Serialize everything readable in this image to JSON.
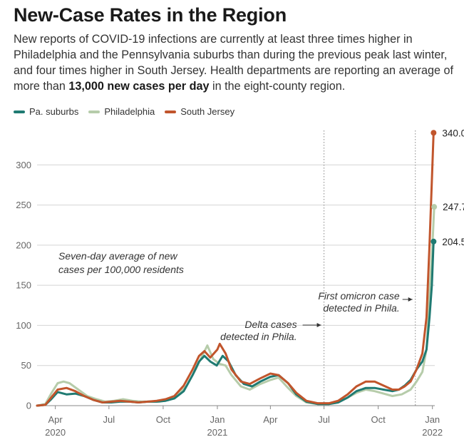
{
  "header": {
    "title": "New-Case Rates in the Region",
    "subtitle_pre": "New reports of COVID-19 infections are currently at least three times higher in Philadelphia and the Pennsylvania suburbs than during the previous peak last winter, and four times higher in South Jersey. Health departments are reporting an average of more than ",
    "subtitle_bold": "13,000 new cases per day",
    "subtitle_post": " in the eight-county region."
  },
  "colors": {
    "pa_suburbs": "#1f7a72",
    "philadelphia": "#b6ccaa",
    "south_jersey": "#c1552c"
  },
  "chart_data": {
    "type": "line",
    "title": "New-Case Rates in the Region",
    "ylabel": "Seven-day average of new cases per 100,000 residents",
    "ylim": [
      0,
      350
    ],
    "yticks": [
      0,
      50,
      100,
      150,
      200,
      250,
      300
    ],
    "x_range": [
      "2020-03-01",
      "2022-01-05"
    ],
    "xticks": [
      {
        "date": "2020-04-01",
        "label": "Apr",
        "year": "2020"
      },
      {
        "date": "2020-07-01",
        "label": "Jul",
        "year": ""
      },
      {
        "date": "2020-10-01",
        "label": "Oct",
        "year": ""
      },
      {
        "date": "2021-01-01",
        "label": "Jan",
        "year": "2021"
      },
      {
        "date": "2021-04-01",
        "label": "Apr",
        "year": ""
      },
      {
        "date": "2021-07-01",
        "label": "Jul",
        "year": ""
      },
      {
        "date": "2021-10-01",
        "label": "Oct",
        "year": ""
      },
      {
        "date": "2022-01-01",
        "label": "Jan",
        "year": "2022"
      }
    ],
    "annotations": [
      {
        "date": "2021-07-01",
        "lines": [
          "Delta cases",
          "detected in Phila."
        ]
      },
      {
        "date": "2021-12-03",
        "lines": [
          "First omicron case",
          "detected in Phila."
        ]
      }
    ],
    "note_lines": [
      "Seven-day average of new",
      "cases per 100,000 residents"
    ],
    "series": [
      {
        "name": "Pa. suburbs",
        "key": "pa_suburbs",
        "end_label": "204.5",
        "points": [
          [
            "2020-03-01",
            0
          ],
          [
            "2020-03-15",
            1
          ],
          [
            "2020-03-25",
            8
          ],
          [
            "2020-04-05",
            17
          ],
          [
            "2020-04-20",
            14
          ],
          [
            "2020-05-05",
            15
          ],
          [
            "2020-05-20",
            12
          ],
          [
            "2020-06-05",
            7
          ],
          [
            "2020-06-20",
            4
          ],
          [
            "2020-07-05",
            4
          ],
          [
            "2020-07-20",
            5
          ],
          [
            "2020-08-05",
            5
          ],
          [
            "2020-08-20",
            4
          ],
          [
            "2020-09-05",
            5
          ],
          [
            "2020-09-20",
            5
          ],
          [
            "2020-10-05",
            6
          ],
          [
            "2020-10-20",
            9
          ],
          [
            "2020-11-05",
            18
          ],
          [
            "2020-11-20",
            38
          ],
          [
            "2020-12-01",
            55
          ],
          [
            "2020-12-10",
            62
          ],
          [
            "2020-12-20",
            55
          ],
          [
            "2020-12-31",
            50
          ],
          [
            "2021-01-10",
            62
          ],
          [
            "2021-01-20",
            55
          ],
          [
            "2021-02-01",
            38
          ],
          [
            "2021-02-15",
            27
          ],
          [
            "2021-03-01",
            24
          ],
          [
            "2021-03-15",
            30
          ],
          [
            "2021-04-01",
            36
          ],
          [
            "2021-04-15",
            38
          ],
          [
            "2021-05-01",
            28
          ],
          [
            "2021-05-15",
            14
          ],
          [
            "2021-06-01",
            5
          ],
          [
            "2021-06-20",
            2
          ],
          [
            "2021-07-10",
            2
          ],
          [
            "2021-07-25",
            4
          ],
          [
            "2021-08-10",
            10
          ],
          [
            "2021-08-25",
            18
          ],
          [
            "2021-09-10",
            22
          ],
          [
            "2021-09-25",
            22
          ],
          [
            "2021-10-10",
            20
          ],
          [
            "2021-10-25",
            18
          ],
          [
            "2021-11-05",
            20
          ],
          [
            "2021-11-15",
            25
          ],
          [
            "2021-11-25",
            32
          ],
          [
            "2021-12-05",
            45
          ],
          [
            "2021-12-15",
            55
          ],
          [
            "2021-12-22",
            70
          ],
          [
            "2021-12-27",
            110
          ],
          [
            "2021-12-31",
            150
          ],
          [
            "2022-01-03",
            204.5
          ]
        ]
      },
      {
        "name": "Philadelphia",
        "key": "philadelphia",
        "end_label": "247.7",
        "points": [
          [
            "2020-03-01",
            0
          ],
          [
            "2020-03-15",
            2
          ],
          [
            "2020-03-25",
            15
          ],
          [
            "2020-04-05",
            28
          ],
          [
            "2020-04-15",
            30
          ],
          [
            "2020-04-25",
            28
          ],
          [
            "2020-05-10",
            20
          ],
          [
            "2020-05-25",
            12
          ],
          [
            "2020-06-10",
            8
          ],
          [
            "2020-06-25",
            5
          ],
          [
            "2020-07-10",
            6
          ],
          [
            "2020-07-25",
            8
          ],
          [
            "2020-08-10",
            6
          ],
          [
            "2020-08-25",
            5
          ],
          [
            "2020-09-10",
            5
          ],
          [
            "2020-09-25",
            5
          ],
          [
            "2020-10-10",
            7
          ],
          [
            "2020-10-25",
            12
          ],
          [
            "2020-11-10",
            25
          ],
          [
            "2020-11-25",
            45
          ],
          [
            "2020-12-05",
            60
          ],
          [
            "2020-12-15",
            75
          ],
          [
            "2020-12-25",
            58
          ],
          [
            "2021-01-05",
            52
          ],
          [
            "2021-01-15",
            50
          ],
          [
            "2021-01-25",
            38
          ],
          [
            "2021-02-10",
            24
          ],
          [
            "2021-02-25",
            20
          ],
          [
            "2021-03-15",
            27
          ],
          [
            "2021-04-01",
            32
          ],
          [
            "2021-04-15",
            35
          ],
          [
            "2021-05-01",
            22
          ],
          [
            "2021-05-15",
            12
          ],
          [
            "2021-06-01",
            4
          ],
          [
            "2021-06-20",
            2
          ],
          [
            "2021-07-10",
            2
          ],
          [
            "2021-07-25",
            4
          ],
          [
            "2021-08-10",
            10
          ],
          [
            "2021-08-25",
            16
          ],
          [
            "2021-09-10",
            20
          ],
          [
            "2021-09-25",
            18
          ],
          [
            "2021-10-10",
            15
          ],
          [
            "2021-10-25",
            12
          ],
          [
            "2021-11-10",
            14
          ],
          [
            "2021-11-25",
            20
          ],
          [
            "2021-12-05",
            30
          ],
          [
            "2021-12-15",
            42
          ],
          [
            "2021-12-22",
            70
          ],
          [
            "2021-12-28",
            150
          ],
          [
            "2022-01-01",
            200
          ],
          [
            "2022-01-04",
            247.7
          ]
        ]
      },
      {
        "name": "South Jersey",
        "key": "south_jersey",
        "end_label": "340.0",
        "points": [
          [
            "2020-03-01",
            0
          ],
          [
            "2020-03-15",
            1
          ],
          [
            "2020-03-25",
            10
          ],
          [
            "2020-04-05",
            20
          ],
          [
            "2020-04-20",
            22
          ],
          [
            "2020-05-05",
            18
          ],
          [
            "2020-05-20",
            12
          ],
          [
            "2020-06-05",
            7
          ],
          [
            "2020-06-20",
            4
          ],
          [
            "2020-07-05",
            5
          ],
          [
            "2020-07-20",
            6
          ],
          [
            "2020-08-05",
            5
          ],
          [
            "2020-08-20",
            4
          ],
          [
            "2020-09-05",
            5
          ],
          [
            "2020-09-20",
            6
          ],
          [
            "2020-10-05",
            8
          ],
          [
            "2020-10-20",
            12
          ],
          [
            "2020-11-05",
            25
          ],
          [
            "2020-11-20",
            45
          ],
          [
            "2020-12-01",
            62
          ],
          [
            "2020-12-10",
            68
          ],
          [
            "2020-12-20",
            60
          ],
          [
            "2021-01-01",
            70
          ],
          [
            "2021-01-05",
            77
          ],
          [
            "2021-01-15",
            65
          ],
          [
            "2021-01-25",
            45
          ],
          [
            "2021-02-10",
            30
          ],
          [
            "2021-02-25",
            27
          ],
          [
            "2021-03-15",
            34
          ],
          [
            "2021-04-01",
            40
          ],
          [
            "2021-04-15",
            38
          ],
          [
            "2021-05-01",
            28
          ],
          [
            "2021-05-15",
            16
          ],
          [
            "2021-06-01",
            6
          ],
          [
            "2021-06-20",
            3
          ],
          [
            "2021-07-10",
            3
          ],
          [
            "2021-07-25",
            6
          ],
          [
            "2021-08-10",
            14
          ],
          [
            "2021-08-25",
            24
          ],
          [
            "2021-09-10",
            30
          ],
          [
            "2021-09-25",
            30
          ],
          [
            "2021-10-10",
            25
          ],
          [
            "2021-10-25",
            20
          ],
          [
            "2021-11-05",
            20
          ],
          [
            "2021-11-15",
            24
          ],
          [
            "2021-11-25",
            30
          ],
          [
            "2021-12-05",
            45
          ],
          [
            "2021-12-15",
            65
          ],
          [
            "2021-12-22",
            110
          ],
          [
            "2021-12-27",
            200
          ],
          [
            "2021-12-31",
            280
          ],
          [
            "2022-01-03",
            340.0
          ]
        ]
      }
    ]
  }
}
